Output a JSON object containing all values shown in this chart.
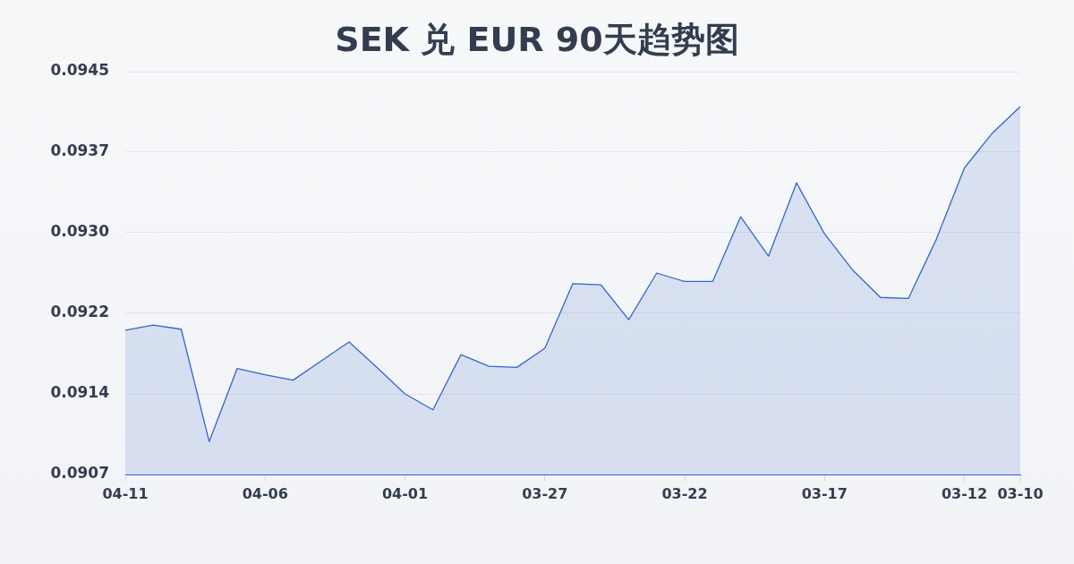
{
  "chart_data": {
    "type": "area",
    "title": "SEK 兑 EUR 90天趋势图",
    "categories": [
      "04-11",
      null,
      null,
      null,
      null,
      "04-06",
      null,
      null,
      null,
      null,
      "04-01",
      null,
      null,
      null,
      null,
      "03-27",
      null,
      null,
      null,
      null,
      "03-22",
      null,
      null,
      null,
      null,
      "03-17",
      null,
      null,
      null,
      null,
      "03-12",
      null,
      "03-10"
    ],
    "values": [
      0.09204,
      0.09209,
      0.09205,
      0.09099,
      0.09168,
      0.09162,
      0.09157,
      0.09175,
      0.09193,
      0.09169,
      0.09144,
      0.09129,
      0.09181,
      0.0917,
      0.09169,
      0.09187,
      0.09248,
      0.09247,
      0.09214,
      0.09258,
      0.0925,
      0.0925,
      0.09311,
      0.09274,
      0.09343,
      0.09295,
      0.09261,
      0.09235,
      0.09234,
      0.0929,
      0.09357,
      0.0939,
      0.09415
    ],
    "color": "#3366cc",
    "ylim": [
      0.09068,
      0.09448
    ],
    "yticks": [
      {
        "value": 0.09068,
        "label": "0.0907"
      },
      {
        "value": 0.09144,
        "label": "0.0914"
      },
      0.0922,
      {
        "value": 0.09296,
        "label": "0.0930"
      },
      {
        "value": 0.09372,
        "label": "0.0937"
      },
      {
        "value": 0.09448,
        "label": "0.0945"
      }
    ],
    "grid": "y"
  }
}
